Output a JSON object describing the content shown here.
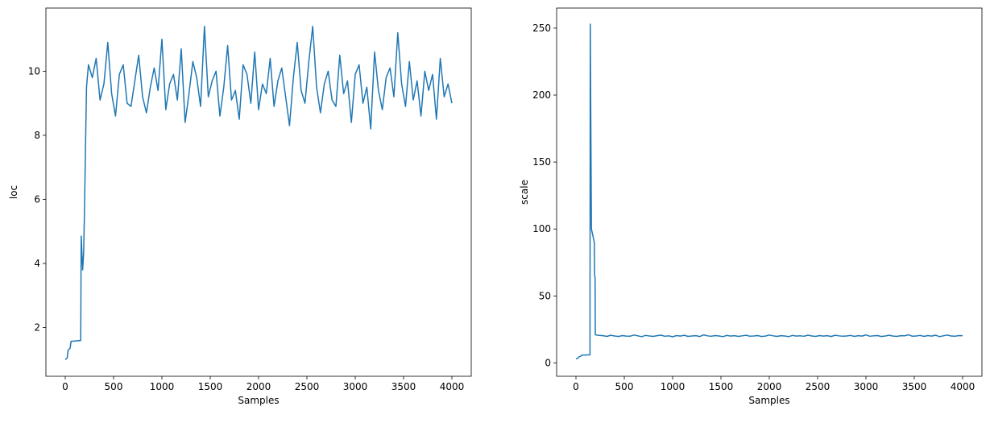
{
  "chart_data": [
    {
      "type": "line",
      "xlabel": "Samples",
      "ylabel": "loc",
      "color": "#1f77b4",
      "xlim": [
        -200,
        4200
      ],
      "xticks": [
        0,
        500,
        1000,
        1500,
        2000,
        2500,
        3000,
        3500,
        4000
      ],
      "ylim": [
        0.48,
        11.97
      ],
      "yticks": [
        2,
        4,
        6,
        8,
        10
      ],
      "x": [
        0,
        20,
        30,
        50,
        60,
        100,
        160,
        165,
        180,
        190,
        200,
        210,
        220,
        240,
        280,
        320,
        360,
        400,
        440,
        480,
        520,
        560,
        600,
        640,
        680,
        720,
        760,
        800,
        840,
        880,
        920,
        960,
        1000,
        1040,
        1080,
        1120,
        1160,
        1200,
        1240,
        1280,
        1320,
        1360,
        1400,
        1440,
        1480,
        1520,
        1560,
        1600,
        1640,
        1680,
        1720,
        1760,
        1800,
        1840,
        1880,
        1920,
        1960,
        2000,
        2040,
        2080,
        2120,
        2160,
        2200,
        2240,
        2280,
        2320,
        2360,
        2400,
        2440,
        2480,
        2520,
        2560,
        2600,
        2640,
        2680,
        2720,
        2760,
        2800,
        2840,
        2880,
        2920,
        2960,
        3000,
        3040,
        3080,
        3120,
        3160,
        3200,
        3240,
        3280,
        3320,
        3360,
        3400,
        3440,
        3480,
        3520,
        3560,
        3600,
        3640,
        3680,
        3720,
        3760,
        3800,
        3840,
        3880,
        3920,
        3960,
        4000
      ],
      "values": [
        1.0,
        1.05,
        1.3,
        1.35,
        1.57,
        1.58,
        1.6,
        4.85,
        3.8,
        4.3,
        5.8,
        7.7,
        9.5,
        10.2,
        9.8,
        10.4,
        9.1,
        9.6,
        10.9,
        9.3,
        8.6,
        9.9,
        10.2,
        9.0,
        8.9,
        9.7,
        10.5,
        9.2,
        8.7,
        9.5,
        10.1,
        9.4,
        11.0,
        8.8,
        9.6,
        9.9,
        9.1,
        10.7,
        8.4,
        9.3,
        10.3,
        9.8,
        8.9,
        11.4,
        9.2,
        9.7,
        10.0,
        8.6,
        9.5,
        10.8,
        9.1,
        9.4,
        8.5,
        10.2,
        9.9,
        9.0,
        10.6,
        8.8,
        9.6,
        9.3,
        10.4,
        8.9,
        9.7,
        10.1,
        9.2,
        8.3,
        9.8,
        10.9,
        9.4,
        9.0,
        10.3,
        11.4,
        9.5,
        8.7,
        9.6,
        10.0,
        9.1,
        8.9,
        10.5,
        9.3,
        9.7,
        8.4,
        9.9,
        10.2,
        9.0,
        9.5,
        8.2,
        10.6,
        9.4,
        8.8,
        9.8,
        10.1,
        9.2,
        11.2,
        9.6,
        8.9,
        10.3,
        9.1,
        9.7,
        8.6,
        10.0,
        9.4,
        9.9,
        8.5,
        10.4,
        9.2,
        9.6,
        9.0
      ]
    },
    {
      "type": "line",
      "xlabel": "Samples",
      "ylabel": "scale",
      "color": "#1f77b4",
      "xlim": [
        -200,
        4200
      ],
      "xticks": [
        0,
        500,
        1000,
        1500,
        2000,
        2500,
        3000,
        3500,
        4000
      ],
      "ylim": [
        -10,
        265
      ],
      "yticks": [
        0,
        50,
        100,
        150,
        200,
        250
      ],
      "x": [
        0,
        20,
        30,
        50,
        60,
        100,
        145,
        148,
        160,
        190,
        193,
        198,
        200,
        240,
        280,
        320,
        360,
        400,
        440,
        480,
        520,
        560,
        600,
        640,
        680,
        720,
        760,
        800,
        840,
        880,
        920,
        960,
        1000,
        1040,
        1080,
        1120,
        1160,
        1200,
        1240,
        1280,
        1320,
        1360,
        1400,
        1440,
        1480,
        1520,
        1560,
        1600,
        1640,
        1680,
        1720,
        1760,
        1800,
        1840,
        1880,
        1920,
        1960,
        2000,
        2040,
        2080,
        2120,
        2160,
        2200,
        2240,
        2280,
        2320,
        2360,
        2400,
        2440,
        2480,
        2520,
        2560,
        2600,
        2640,
        2680,
        2720,
        2760,
        2800,
        2840,
        2880,
        2920,
        2960,
        3000,
        3040,
        3080,
        3120,
        3160,
        3200,
        3240,
        3280,
        3320,
        3360,
        3400,
        3440,
        3480,
        3520,
        3560,
        3600,
        3640,
        3680,
        3720,
        3760,
        3800,
        3840,
        3880,
        3920,
        3960,
        4000
      ],
      "values": [
        3,
        3.5,
        4.5,
        5,
        5.8,
        5.9,
        6,
        253,
        100,
        90,
        65,
        64,
        21,
        20.5,
        20.3,
        19.8,
        20.6,
        20.1,
        19.7,
        20.4,
        20.0,
        19.9,
        20.8,
        20.2,
        19.6,
        20.5,
        20.1,
        19.8,
        20.3,
        20.7,
        19.9,
        20.2,
        19.5,
        20.4,
        20.0,
        20.6,
        19.8,
        20.1,
        20.3,
        19.7,
        20.9,
        20.2,
        19.9,
        20.4,
        20.1,
        19.6,
        20.5,
        20.0,
        20.3,
        19.8,
        20.2,
        20.6,
        19.9,
        20.1,
        20.4,
        19.7,
        20.0,
        20.8,
        20.2,
        19.8,
        20.3,
        20.1,
        19.6,
        20.5,
        20.0,
        20.2,
        19.9,
        20.7,
        20.1,
        19.8,
        20.4,
        20.0,
        20.3,
        19.7,
        20.6,
        20.2,
        19.9,
        20.1,
        20.5,
        19.8,
        20.3,
        20.0,
        20.9,
        19.9,
        20.2,
        20.4,
        19.7,
        20.1,
        20.6,
        20.0,
        19.8,
        20.3,
        20.2,
        21.0,
        19.9,
        20.1,
        20.5,
        19.8,
        20.4,
        20.0,
        20.7,
        19.6,
        20.2,
        20.8,
        20.1,
        19.9,
        20.4,
        20.3
      ]
    }
  ]
}
